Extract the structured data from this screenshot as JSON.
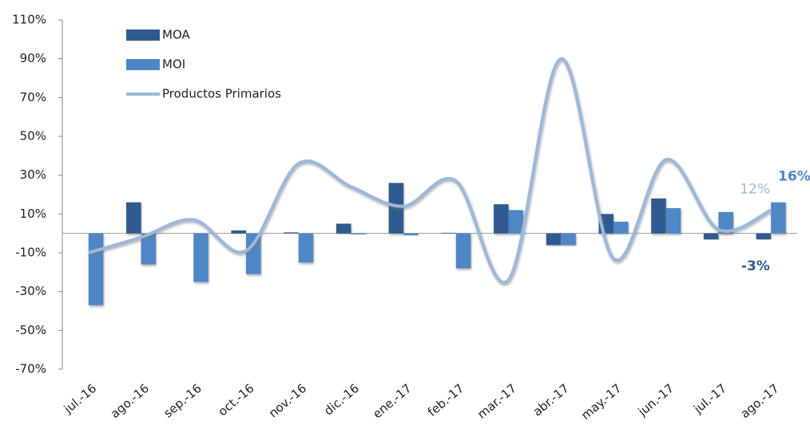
{
  "chart_data": {
    "type": "bar-line",
    "categories": [
      "jul.-16",
      "ago.-16",
      "sep.-16",
      "oct.-16",
      "nov.-16",
      "dic.-16",
      "ene.-17",
      "feb.-17",
      "mar.-17",
      "abr.-17",
      "may.-17",
      "jun.-17",
      "jul.-17",
      "ago.-17"
    ],
    "series": [
      {
        "name": "MOA",
        "type": "bar",
        "color": "#2f5a8f",
        "values": [
          0,
          16,
          0,
          1.5,
          0.5,
          5,
          26,
          0.3,
          15,
          -6,
          10,
          18,
          -3,
          -3
        ],
        "value_labels": [
          null,
          null,
          null,
          null,
          null,
          null,
          null,
          null,
          null,
          null,
          null,
          null,
          null,
          "-3%"
        ]
      },
      {
        "name": "MOI",
        "type": "bar",
        "color": "#4f86c6",
        "values": [
          -37,
          -16,
          -25,
          -21,
          -15,
          -0.5,
          -1,
          -18,
          12,
          -6,
          6,
          13,
          11,
          16
        ],
        "value_labels": [
          null,
          null,
          null,
          null,
          null,
          null,
          null,
          null,
          null,
          null,
          null,
          null,
          null,
          "16%"
        ]
      },
      {
        "name": "Productos Primarios",
        "type": "line",
        "color": "#9cb8dc",
        "values": [
          -10,
          -2,
          7,
          -9,
          36,
          24,
          14,
          27,
          -24,
          90,
          -13,
          38,
          2,
          12
        ],
        "value_labels": [
          null,
          null,
          null,
          null,
          null,
          null,
          null,
          null,
          null,
          null,
          null,
          null,
          null,
          "12%"
        ]
      }
    ],
    "ylim": [
      -70,
      110
    ],
    "yticks": [
      {
        "value": -70,
        "label": "-70%"
      },
      {
        "value": -50,
        "label": "-50%"
      },
      {
        "value": -30,
        "label": "-30%"
      },
      {
        "value": -10,
        "label": "-10%"
      },
      {
        "value": 10,
        "label": "10%"
      },
      {
        "value": 30,
        "label": "30%"
      },
      {
        "value": 50,
        "label": "50%"
      },
      {
        "value": 70,
        "label": "70%"
      },
      {
        "value": 90,
        "label": "90%"
      },
      {
        "value": 110,
        "label": "110%"
      }
    ],
    "legend": "upper left"
  }
}
